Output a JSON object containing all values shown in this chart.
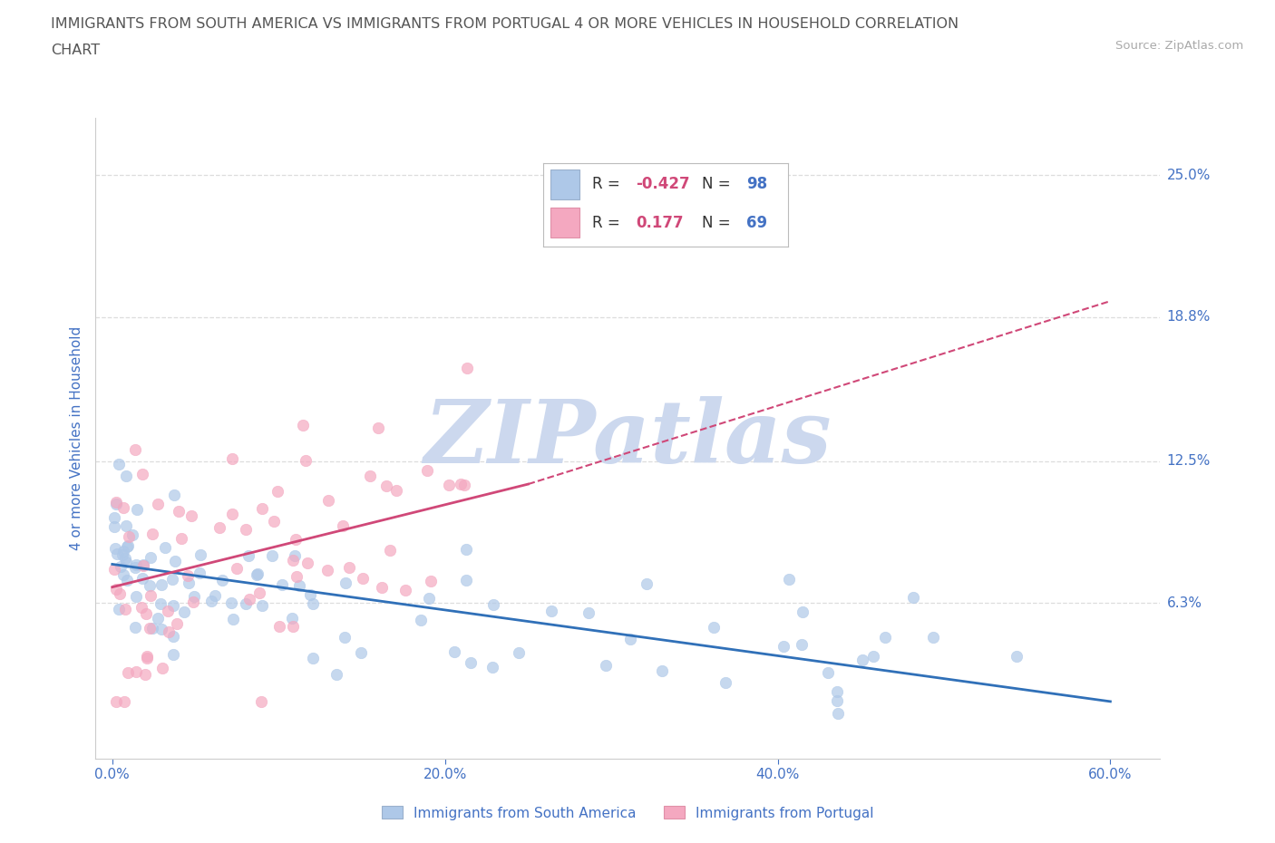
{
  "title_line1": "IMMIGRANTS FROM SOUTH AMERICA VS IMMIGRANTS FROM PORTUGAL 4 OR MORE VEHICLES IN HOUSEHOLD CORRELATION",
  "title_line2": "CHART",
  "source": "Source: ZipAtlas.com",
  "ylabel": "4 or more Vehicles in Household",
  "ytick_labels": [
    "6.3%",
    "12.5%",
    "18.8%",
    "25.0%"
  ],
  "ytick_vals": [
    6.3,
    12.5,
    18.8,
    25.0
  ],
  "xtick_labels": [
    "0.0%",
    "20.0%",
    "40.0%",
    "60.0%"
  ],
  "xtick_vals": [
    0.0,
    20.0,
    40.0,
    60.0
  ],
  "xmin": -1.0,
  "xmax": 63.0,
  "ymin": -0.5,
  "ymax": 27.5,
  "blue_scatter_color": "#aec8e8",
  "pink_scatter_color": "#f4a8c0",
  "blue_line_color": "#3070b8",
  "pink_line_color": "#d04878",
  "blue_trend": [
    0.0,
    8.0,
    60.0,
    2.0
  ],
  "pink_trend_solid": [
    0.0,
    7.0,
    25.0,
    11.5
  ],
  "pink_trend_dashed": [
    25.0,
    11.5,
    60.0,
    19.5
  ],
  "R_blue": "-0.427",
  "N_blue": "98",
  "R_pink": "0.177",
  "N_pink": "69",
  "legend_series1": "Immigrants from South America",
  "legend_series2": "Immigrants from Portugal",
  "watermark": "ZIPatlas",
  "watermark_color": "#ccd8ee",
  "title_color": "#555555",
  "axis_color": "#4472c4",
  "source_color": "#aaaaaa",
  "grid_color": "#dddddd",
  "legend_R_color": "#d04878",
  "legend_N_color": "#4472c4",
  "legend_text_color": "#333333"
}
